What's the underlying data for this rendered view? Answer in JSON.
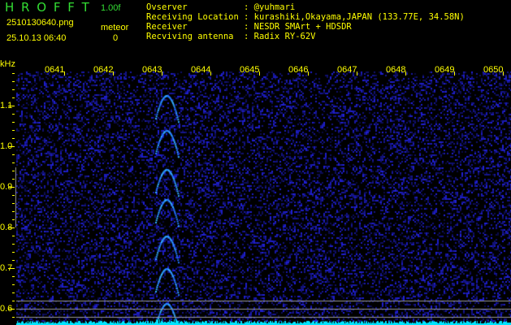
{
  "header": {
    "app_name": "H R O F F T",
    "version": "1.00f",
    "filename": "2510130640.png",
    "datetime": "25.10.13 06:40",
    "meteor_label": "meteor",
    "meteor_count": "0",
    "info": [
      {
        "label": "Ovserver",
        "value": ": @yuhmari"
      },
      {
        "label": "Receiving Location",
        "value": ": kurashiki,Okayama,JAPAN (133.77E, 34.58N)"
      },
      {
        "label": "Receiver",
        "value": ": NESDR SMArt + HDSDR"
      },
      {
        "label": "Recviving antenna",
        "value": ": Radix RY-62V"
      }
    ]
  },
  "colors": {
    "text": "#ffff00",
    "logo": "#33dd33",
    "background": "#000000",
    "noise": "#1a1aff",
    "echo": "#33aaff",
    "baseline": "#00ffff"
  },
  "chart_data": {
    "type": "heatmap",
    "ylabel": "kHz",
    "x_ticks": [
      "0641",
      "0642",
      "0643",
      "0644",
      "0645",
      "0646",
      "0647",
      "0648",
      "0649",
      "0650"
    ],
    "y_ticks": [
      "1.1",
      "1.0",
      "0.9",
      "0.8",
      "0.7",
      "0.6"
    ],
    "ylim": [
      0.56,
      1.19
    ]
  }
}
